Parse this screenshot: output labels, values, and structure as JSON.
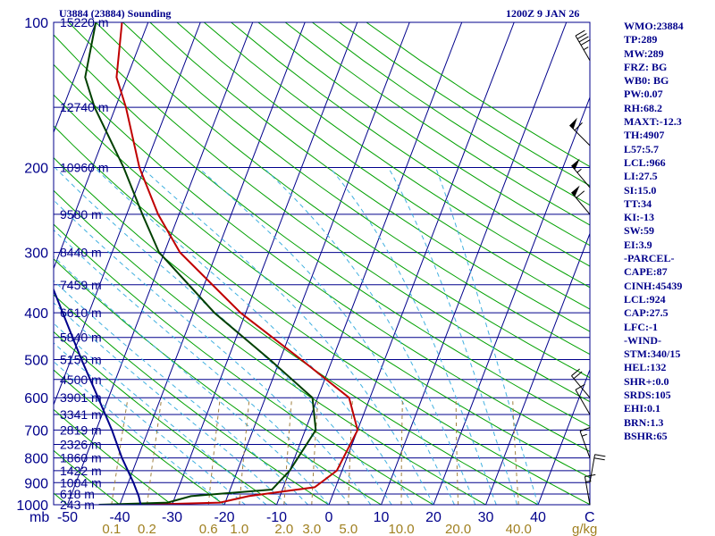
{
  "chart_data": {
    "type": "line",
    "title_left": "U3884 (23884) Sounding",
    "title_right": "1200Z  9 JAN 26",
    "x_unit_label": "C",
    "pressure_unit_label": "mb",
    "mixing_ratio_unit_label": "g/kg",
    "pressure_ticks": [
      "100",
      "200",
      "300",
      "400",
      "500",
      "600",
      "700",
      "800",
      "900",
      "1000"
    ],
    "temperature_ticks": [
      "-50",
      "-40",
      "-30",
      "-20",
      "-10",
      "0",
      "10",
      "20",
      "30",
      "40"
    ],
    "mixing_ratio_ticks": [
      "0.1",
      "0.2",
      "0.6",
      "1.0",
      "2.0",
      "3.0",
      "5.0",
      "10.0",
      "20.0",
      "40.0"
    ],
    "height_labels": [
      {
        "pressure": 100,
        "label": "15220 m"
      },
      {
        "pressure": 150,
        "label": "12740 m"
      },
      {
        "pressure": 200,
        "label": "10960 m"
      },
      {
        "pressure": 250,
        "label": "9580 m"
      },
      {
        "pressure": 300,
        "label": "8440 m"
      },
      {
        "pressure": 350,
        "label": "7459 m"
      },
      {
        "pressure": 400,
        "label": "6610 m"
      },
      {
        "pressure": 450,
        "label": "5840 m"
      },
      {
        "pressure": 500,
        "label": "5150 m"
      },
      {
        "pressure": 550,
        "label": "4500 m"
      },
      {
        "pressure": 600,
        "label": "3901 m"
      },
      {
        "pressure": 650,
        "label": "3341 m"
      },
      {
        "pressure": 700,
        "label": "2819 m"
      },
      {
        "pressure": 750,
        "label": "2326 m"
      },
      {
        "pressure": 800,
        "label": "1860 m"
      },
      {
        "pressure": 850,
        "label": "1422 m"
      },
      {
        "pressure": 900,
        "label": "1004 m"
      },
      {
        "pressure": 950,
        "label": "618 m"
      },
      {
        "pressure": 1000,
        "label": "243 m"
      }
    ],
    "series": [
      {
        "color": "#c00000",
        "points": [
          {
            "p": 1000,
            "t": -36
          },
          {
            "p": 990,
            "t": -21
          },
          {
            "p": 960,
            "t": -16
          },
          {
            "p": 920,
            "t": -4
          },
          {
            "p": 850,
            "t": -1
          },
          {
            "p": 700,
            "t": 0
          },
          {
            "p": 600,
            "t": -4
          },
          {
            "p": 500,
            "t": -16
          },
          {
            "p": 400,
            "t": -31
          },
          {
            "p": 300,
            "t": -47
          },
          {
            "p": 250,
            "t": -54
          },
          {
            "p": 200,
            "t": -61
          },
          {
            "p": 150,
            "t": -68
          },
          {
            "p": 130,
            "t": -72
          },
          {
            "p": 100,
            "t": -75
          }
        ]
      },
      {
        "color": "#004000",
        "points": [
          {
            "p": 1000,
            "t": -44
          },
          {
            "p": 990,
            "t": -31
          },
          {
            "p": 960,
            "t": -27
          },
          {
            "p": 930,
            "t": -12
          },
          {
            "p": 850,
            "t": -10
          },
          {
            "p": 700,
            "t": -8
          },
          {
            "p": 600,
            "t": -11
          },
          {
            "p": 500,
            "t": -22
          },
          {
            "p": 400,
            "t": -36
          },
          {
            "p": 300,
            "t": -51
          },
          {
            "p": 250,
            "t": -57
          },
          {
            "p": 200,
            "t": -64
          },
          {
            "p": 150,
            "t": -74
          },
          {
            "p": 130,
            "t": -78
          },
          {
            "p": 100,
            "t": -80
          }
        ]
      },
      {
        "color": "#00008b",
        "points": [
          {
            "p": 1000,
            "t": -36
          },
          {
            "p": 960,
            "t": -37
          },
          {
            "p": 900,
            "t": -39
          },
          {
            "p": 800,
            "t": -43
          },
          {
            "p": 700,
            "t": -47
          },
          {
            "p": 600,
            "t": -52
          },
          {
            "p": 500,
            "t": -58
          },
          {
            "p": 400,
            "t": -65
          },
          {
            "p": 320,
            "t": -72
          }
        ]
      }
    ],
    "winds": [
      {
        "p": 120,
        "dir": 330,
        "spd": 45
      },
      {
        "p": 180,
        "dir": 315,
        "spd": 60
      },
      {
        "p": 220,
        "dir": 320,
        "spd": 55
      },
      {
        "p": 250,
        "dir": 320,
        "spd": 60
      },
      {
        "p": 600,
        "dir": 320,
        "spd": 20
      },
      {
        "p": 650,
        "dir": 330,
        "spd": 10
      },
      {
        "p": 800,
        "dir": 340,
        "spd": 15
      },
      {
        "p": 900,
        "dir": 10,
        "spd": 20
      },
      {
        "p": 1000,
        "dir": 350,
        "spd": 15
      }
    ],
    "grid": true
  },
  "indices": [
    "WMO:23884",
    "TP:289",
    "MW:289",
    "FRZ: BG",
    "WB0: BG",
    "PW:0.07",
    "RH:68.2",
    "MAXT:-12.3",
    "TH:4907",
    "L57:5.7",
    "LCL:966",
    "LI:27.5",
    "SI:15.0",
    "TT:34",
    "KI:-13",
    "SW:59",
    "EI:3.9",
    "-PARCEL-",
    "CAPE:87",
    "CINH:45439",
    "LCL:924",
    "CAP:27.5",
    "LFC:-1",
    "-WIND-",
    "STM:340/15",
    "HEL:132",
    "SHR+:0.0",
    "SRDS:105",
    "EHI:0.1",
    "BRN:1.3",
    "BSHR:65"
  ],
  "colors": {
    "isobar": "#00008b",
    "isotherm": "#00008b",
    "dry_adiabat": "#00a000",
    "moist_adiabat": "#40b0e0",
    "mixing_ratio": "#a08040",
    "label_text": "#00008b",
    "mixing_ratio_text": "#a08020",
    "temperature": "#c00000",
    "dewpoint": "#004000",
    "parcel": "#00008b"
  }
}
